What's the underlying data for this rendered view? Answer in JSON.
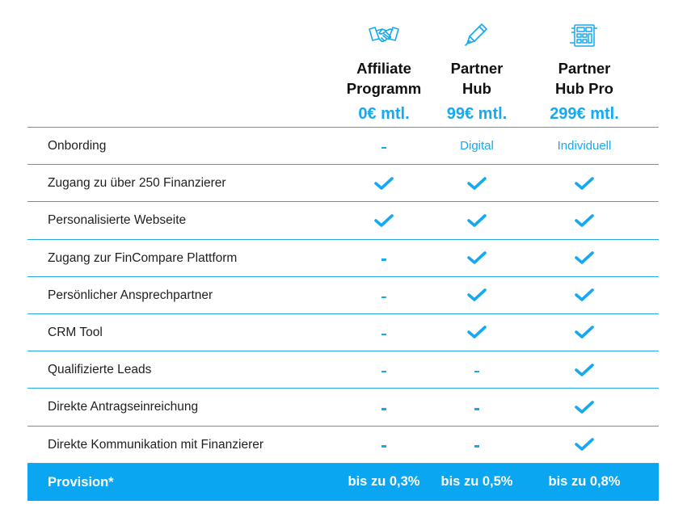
{
  "plans": [
    {
      "icon": "handshake-icon",
      "name": "Affiliate\nProgramm",
      "price": "0€ mtl."
    },
    {
      "icon": "pen-icon",
      "name": "Partner\nHub",
      "price": "99€ mtl."
    },
    {
      "icon": "calculator-icon",
      "name": "Partner\nHub Pro",
      "price": "299€ mtl."
    }
  ],
  "rows": [
    {
      "label": "Onbording",
      "values": [
        "-",
        "Digital",
        "Individuell"
      ]
    },
    {
      "label": "Zugang zu über 250 Finanzierer",
      "values": [
        "check",
        "check",
        "check"
      ]
    },
    {
      "label": "Personalisierte Webseite",
      "values": [
        "check",
        "check",
        "check"
      ]
    },
    {
      "label": "Zugang zur FinCompare Plattform",
      "values": [
        "-",
        "check",
        "check"
      ]
    },
    {
      "label": "Persönlicher Ansprechpartner",
      "values": [
        "-",
        "check",
        "check"
      ]
    },
    {
      "label": "CRM Tool",
      "values": [
        "-",
        "check",
        "check"
      ]
    },
    {
      "label": "Qualifizierte Leads",
      "values": [
        "-",
        "-",
        "check"
      ]
    },
    {
      "label": "Direkte Antragseinreichung",
      "values": [
        "-",
        "-",
        "check"
      ]
    },
    {
      "label": "Direkte Kommunikation mit Finanzierer",
      "values": [
        "-",
        "-",
        "check"
      ]
    }
  ],
  "footer": {
    "label": "Provision*",
    "values": [
      "bis zu 0,3%",
      "bis zu 0,5%",
      "bis zu 0,8%"
    ]
  },
  "colors": {
    "accent": "#14a9f1",
    "footer_bg": "#0ba6f2",
    "divider": "#2aa8ec"
  }
}
